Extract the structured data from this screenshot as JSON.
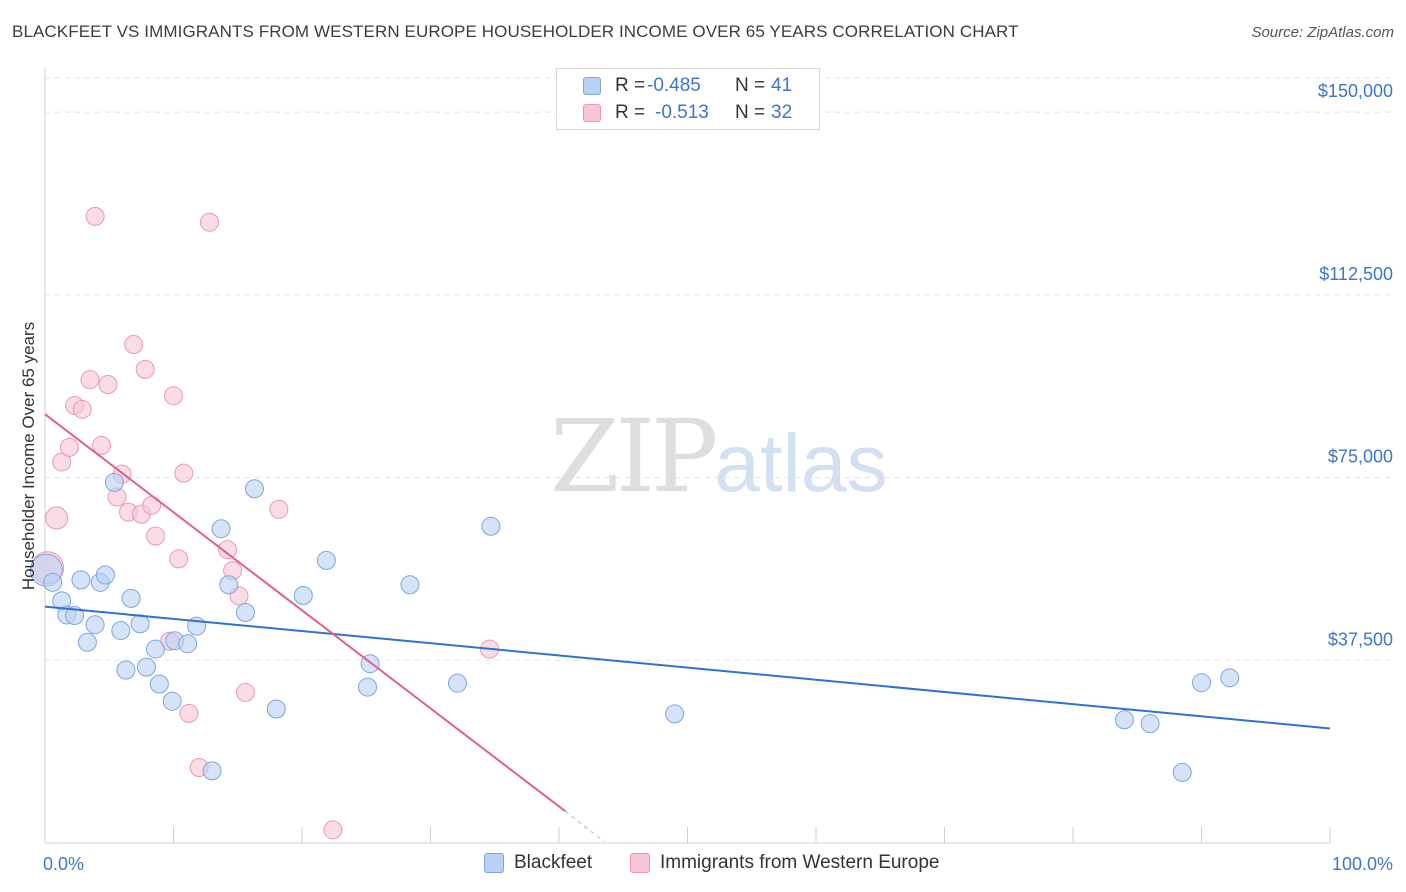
{
  "title": "BLACKFEET VS IMMIGRANTS FROM WESTERN EUROPE HOUSEHOLDER INCOME OVER 65 YEARS CORRELATION CHART",
  "source": "Source: ZipAtlas.com",
  "watermark": {
    "zip": "ZIP",
    "atlas": "atlas"
  },
  "legend_top": {
    "rows": [
      {
        "r_label": "R =",
        "r_value": "-0.485",
        "n_label": "N =",
        "n_value": "41"
      },
      {
        "r_label": "R =",
        "r_value": "-0.513",
        "n_label": "N =",
        "n_value": "32"
      }
    ]
  },
  "legend_bottom": {
    "items": [
      {
        "label": "Blackfeet"
      },
      {
        "label": "Immigrants from Western Europe"
      }
    ]
  },
  "colors": {
    "blue_fill": "#b9d1f3",
    "blue_stroke": "#7ea6dd",
    "blue_line": "#2f72d0",
    "pink_fill": "#f9c4d4",
    "pink_stroke": "#eb99b3",
    "pink_line": "#e0608e",
    "tick_text": "#3b77c8",
    "grid": "#e3e3e3"
  },
  "chart_data": {
    "type": "scatter",
    "title": "BLACKFEET VS IMMIGRANTS FROM WESTERN EUROPE HOUSEHOLDER INCOME OVER 65 YEARS CORRELATION CHART",
    "xlabel": "",
    "ylabel": "Householder Income Over 65 years",
    "xlim": [
      0,
      100
    ],
    "ylim": [
      0,
      157000
    ],
    "x_tick_labels": [
      "0.0%",
      "100.0%"
    ],
    "y_ticks": [
      {
        "value": 37500,
        "label": "$37,500"
      },
      {
        "value": 75000,
        "label": "$75,000"
      },
      {
        "value": 112500,
        "label": "$112,500"
      },
      {
        "value": 150000,
        "label": "$150,000"
      }
    ],
    "series": [
      {
        "name": "Blackfeet",
        "r": -0.485,
        "n": 41,
        "trend": {
          "x": [
            0,
            100
          ],
          "y": [
            48500,
            23500
          ]
        },
        "points": [
          [
            0.1,
            56000
          ],
          [
            0.6,
            53500
          ],
          [
            1.3,
            49700
          ],
          [
            1.7,
            46800
          ],
          [
            2.3,
            46700
          ],
          [
            2.8,
            54000
          ],
          [
            3.3,
            41200
          ],
          [
            3.9,
            44800
          ],
          [
            4.3,
            53500
          ],
          [
            4.7,
            55000
          ],
          [
            5.4,
            74000
          ],
          [
            5.9,
            43600
          ],
          [
            6.3,
            35500
          ],
          [
            6.7,
            50200
          ],
          [
            7.4,
            45000
          ],
          [
            7.9,
            36100
          ],
          [
            8.6,
            39800
          ],
          [
            8.9,
            32600
          ],
          [
            9.9,
            29100
          ],
          [
            10.1,
            41500
          ],
          [
            11.1,
            40900
          ],
          [
            11.8,
            44500
          ],
          [
            13.7,
            64500
          ],
          [
            14.3,
            53000
          ],
          [
            15.6,
            47300
          ],
          [
            16.3,
            72700
          ],
          [
            20.1,
            50800
          ],
          [
            21.9,
            58000
          ],
          [
            25.1,
            32000
          ],
          [
            25.3,
            36800
          ],
          [
            28.4,
            53000
          ],
          [
            32.1,
            32800
          ],
          [
            34.7,
            65000
          ],
          [
            49.0,
            26500
          ],
          [
            84.0,
            25300
          ],
          [
            86.0,
            24500
          ],
          [
            88.5,
            14500
          ],
          [
            90.0,
            32900
          ],
          [
            92.2,
            33900
          ],
          [
            13.0,
            14800
          ],
          [
            18.0,
            27500
          ]
        ]
      },
      {
        "name": "Immigrants from Western Europe",
        "r": -0.513,
        "n": 32,
        "trend": {
          "x": [
            0,
            40.5
          ],
          "y": [
            88000,
            6500
          ]
        },
        "trend_dashed": {
          "x": [
            40.5,
            43.5
          ],
          "y": [
            6500,
            300
          ]
        },
        "points": [
          [
            0.2,
            56500
          ],
          [
            0.9,
            66700
          ],
          [
            1.3,
            78200
          ],
          [
            1.9,
            81200
          ],
          [
            2.3,
            89800
          ],
          [
            2.9,
            89000
          ],
          [
            3.5,
            95100
          ],
          [
            3.9,
            128600
          ],
          [
            4.4,
            81600
          ],
          [
            4.9,
            94100
          ],
          [
            5.6,
            71000
          ],
          [
            6.0,
            75700
          ],
          [
            6.5,
            67900
          ],
          [
            6.9,
            102300
          ],
          [
            7.5,
            67500
          ],
          [
            7.8,
            97200
          ],
          [
            8.3,
            69300
          ],
          [
            8.6,
            63000
          ],
          [
            9.7,
            41400
          ],
          [
            10.0,
            91800
          ],
          [
            10.4,
            58300
          ],
          [
            10.8,
            75900
          ],
          [
            11.2,
            26600
          ],
          [
            12.0,
            15500
          ],
          [
            12.8,
            127400
          ],
          [
            14.2,
            60200
          ],
          [
            14.6,
            55900
          ],
          [
            15.1,
            50700
          ],
          [
            15.6,
            30900
          ],
          [
            18.2,
            68500
          ],
          [
            22.4,
            2700
          ],
          [
            34.6,
            39800
          ]
        ]
      }
    ]
  }
}
